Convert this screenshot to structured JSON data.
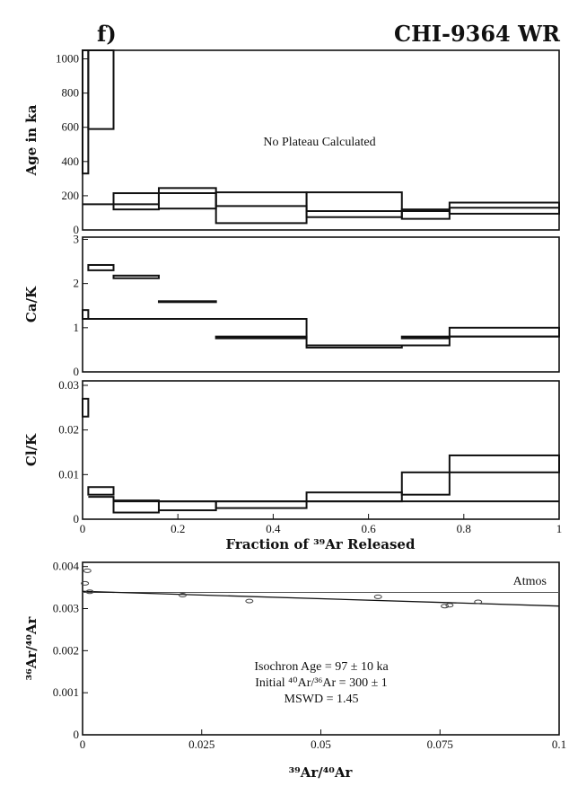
{
  "figure": {
    "panel_label": "f)",
    "sample": "CHI-9364 WR"
  },
  "chart_data": [
    {
      "type": "step",
      "ylabel": "Age in ka",
      "annotation": "No Plateau Calculated",
      "xlim": [
        0,
        1
      ],
      "ylim": [
        0,
        1050
      ],
      "yticks": [
        0,
        200,
        400,
        600,
        800,
        1000
      ],
      "steps": [
        {
          "x": [
            0.0,
            0.012
          ],
          "y": [
            330,
            1050
          ]
        },
        {
          "x": [
            0.012,
            0.065
          ],
          "y": [
            590,
            1050
          ]
        },
        {
          "x": [
            0.065,
            0.16
          ],
          "y": [
            120,
            215
          ]
        },
        {
          "x": [
            0.16,
            0.28
          ],
          "y": [
            125,
            245
          ]
        },
        {
          "x": [
            0.28,
            0.47
          ],
          "y": [
            40,
            220
          ]
        },
        {
          "x": [
            0.47,
            0.67
          ],
          "y": [
            75,
            220
          ]
        },
        {
          "x": [
            0.67,
            0.77
          ],
          "y": [
            65,
            120
          ]
        },
        {
          "x": [
            0.77,
            1.0
          ],
          "y": [
            95,
            160
          ]
        }
      ],
      "lines": [
        {
          "x": [
            0,
            0.065,
            0.16,
            0.28,
            0.47,
            0.67,
            0.77,
            1.0
          ],
          "y": [
            150,
            150,
            215,
            140,
            110,
            110,
            130,
            130
          ]
        }
      ]
    },
    {
      "type": "step",
      "ylabel": "Ca/K",
      "xlim": [
        0,
        1
      ],
      "ylim": [
        0,
        3.05
      ],
      "yticks": [
        0,
        1,
        2,
        3
      ],
      "steps": [
        {
          "x": [
            0.0,
            0.012
          ],
          "y": [
            1.2,
            1.4
          ]
        },
        {
          "x": [
            0.012,
            0.065
          ],
          "y": [
            2.3,
            2.42
          ]
        },
        {
          "x": [
            0.065,
            0.16
          ],
          "y": [
            2.12,
            2.18
          ]
        },
        {
          "x": [
            0.16,
            0.28
          ],
          "y": [
            1.58,
            1.6
          ]
        },
        {
          "x": [
            0.28,
            0.47
          ],
          "y": [
            0.76,
            0.8
          ]
        },
        {
          "x": [
            0.47,
            0.67
          ],
          "y": [
            0.55,
            0.6
          ]
        },
        {
          "x": [
            0.67,
            0.77
          ],
          "y": [
            0.76,
            0.8
          ]
        },
        {
          "x": [
            0.77,
            1.0
          ],
          "y": [
            0.8,
            1.0
          ]
        }
      ],
      "lines": [
        {
          "x": [
            0.012,
            0.28,
            0.47,
            0.67,
            0.77,
            1.0
          ],
          "y": [
            1.2,
            1.2,
            0.6,
            0.6,
            0.8,
            0.8
          ]
        }
      ]
    },
    {
      "type": "step",
      "ylabel": "Cl/K",
      "xlabel": "Fraction of ³⁹Ar Released",
      "xlim": [
        0,
        1
      ],
      "ylim": [
        0,
        0.031
      ],
      "yticks": [
        0,
        0.01,
        0.02,
        0.03
      ],
      "ytick_labels": [
        "0",
        "0.01",
        "0.02",
        "0.03"
      ],
      "xticks": [
        0,
        0.2,
        0.4,
        0.6,
        0.8,
        1
      ],
      "xtick_labels": [
        "0",
        "0.2",
        "0.4",
        "0.6",
        "0.8",
        "1"
      ],
      "steps": [
        {
          "x": [
            0.0,
            0.012
          ],
          "y": [
            0.023,
            0.027
          ]
        },
        {
          "x": [
            0.012,
            0.065
          ],
          "y": [
            0.0055,
            0.0072
          ]
        },
        {
          "x": [
            0.065,
            0.16
          ],
          "y": [
            0.0015,
            0.004
          ]
        },
        {
          "x": [
            0.16,
            0.28
          ],
          "y": [
            0.002,
            0.004
          ]
        },
        {
          "x": [
            0.28,
            0.47
          ],
          "y": [
            0.0025,
            0.004
          ]
        },
        {
          "x": [
            0.47,
            0.67
          ],
          "y": [
            0.004,
            0.006
          ]
        },
        {
          "x": [
            0.67,
            0.77
          ],
          "y": [
            0.0055,
            0.0105
          ]
        },
        {
          "x": [
            0.77,
            1.0
          ],
          "y": [
            0.0105,
            0.0143
          ]
        }
      ],
      "lines": [
        {
          "x": [
            0.012,
            0.065,
            0.16,
            0.28,
            0.47,
            0.67,
            0.77,
            1.0
          ],
          "y": [
            0.005,
            0.0042,
            0.004,
            0.004,
            0.004,
            0.004,
            0.004,
            0.0105
          ]
        }
      ]
    },
    {
      "type": "scatter",
      "ylabel": "³⁶Ar/⁴⁰Ar",
      "xlabel": "³⁹Ar/⁴⁰Ar",
      "xlim": [
        0,
        0.1
      ],
      "ylim": [
        0,
        0.0041
      ],
      "xticks": [
        0,
        0.025,
        0.05,
        0.075,
        0.1
      ],
      "xtick_labels": [
        "0",
        "0.025",
        "0.05",
        "0.075",
        "0.1"
      ],
      "yticks": [
        0,
        0.001,
        0.002,
        0.003,
        0.004
      ],
      "ytick_labels": [
        "0",
        "0.001",
        "0.002",
        "0.003",
        "0.004"
      ],
      "atmos_label": "Atmos",
      "atmos_y": 0.003384,
      "isochron": {
        "x": [
          0,
          0.1
        ],
        "y": [
          0.00341,
          0.00306
        ]
      },
      "points": [
        {
          "x": 0.0005,
          "y": 0.0036
        },
        {
          "x": 0.001,
          "y": 0.0039
        },
        {
          "x": 0.0015,
          "y": 0.0034
        },
        {
          "x": 0.021,
          "y": 0.00332
        },
        {
          "x": 0.035,
          "y": 0.00318
        },
        {
          "x": 0.062,
          "y": 0.00328
        },
        {
          "x": 0.076,
          "y": 0.00306
        },
        {
          "x": 0.077,
          "y": 0.00308
        },
        {
          "x": 0.083,
          "y": 0.00316
        }
      ],
      "results": {
        "line1": "Isochron Age = 97 ± 10 ka",
        "line2": "Initial ⁴⁰Ar/³⁶Ar = 300 ± 1",
        "line3": "MSWD = 1.45"
      }
    }
  ]
}
